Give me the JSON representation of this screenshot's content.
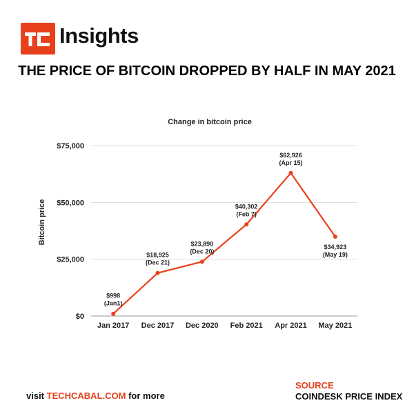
{
  "header": {
    "logo_text": "TC",
    "brand": "Insights",
    "headline": "THE PRICE OF BITCOIN DROPPED BY HALF IN MAY 2021"
  },
  "chart_data": {
    "type": "line",
    "title": "Change in bitcoin price",
    "xlabel": "",
    "ylabel": "Bitcoin price",
    "categories": [
      "Jan 2017",
      "Dec 2017",
      "Dec 2020",
      "Feb 2021",
      "Apr 2021",
      "May 2021"
    ],
    "values": [
      998,
      18925,
      23890,
      40302,
      62926,
      34923
    ],
    "data_labels": [
      [
        "$998",
        "(Jan1)"
      ],
      [
        "$18,925",
        "(Dec 21)"
      ],
      [
        "$23,890",
        "(Dec 20)"
      ],
      [
        "$40,302",
        "(Feb 7)"
      ],
      [
        "$62,926",
        "(Apr 15)"
      ],
      [
        "$34,923",
        "(May 19)"
      ]
    ],
    "ylim": [
      0,
      75000
    ],
    "y_ticks": [
      0,
      25000,
      50000,
      75000
    ],
    "y_tick_labels": [
      "$0",
      "$25,000",
      "$50,000",
      "$75,000"
    ],
    "grid": true,
    "line_color": "#e8401c"
  },
  "footer": {
    "prefix": "visit ",
    "link": "TECHCABAL.COM",
    "suffix": " for more",
    "source_label": "SOURCE",
    "source_value": "COINDESK PRICE INDEX"
  }
}
